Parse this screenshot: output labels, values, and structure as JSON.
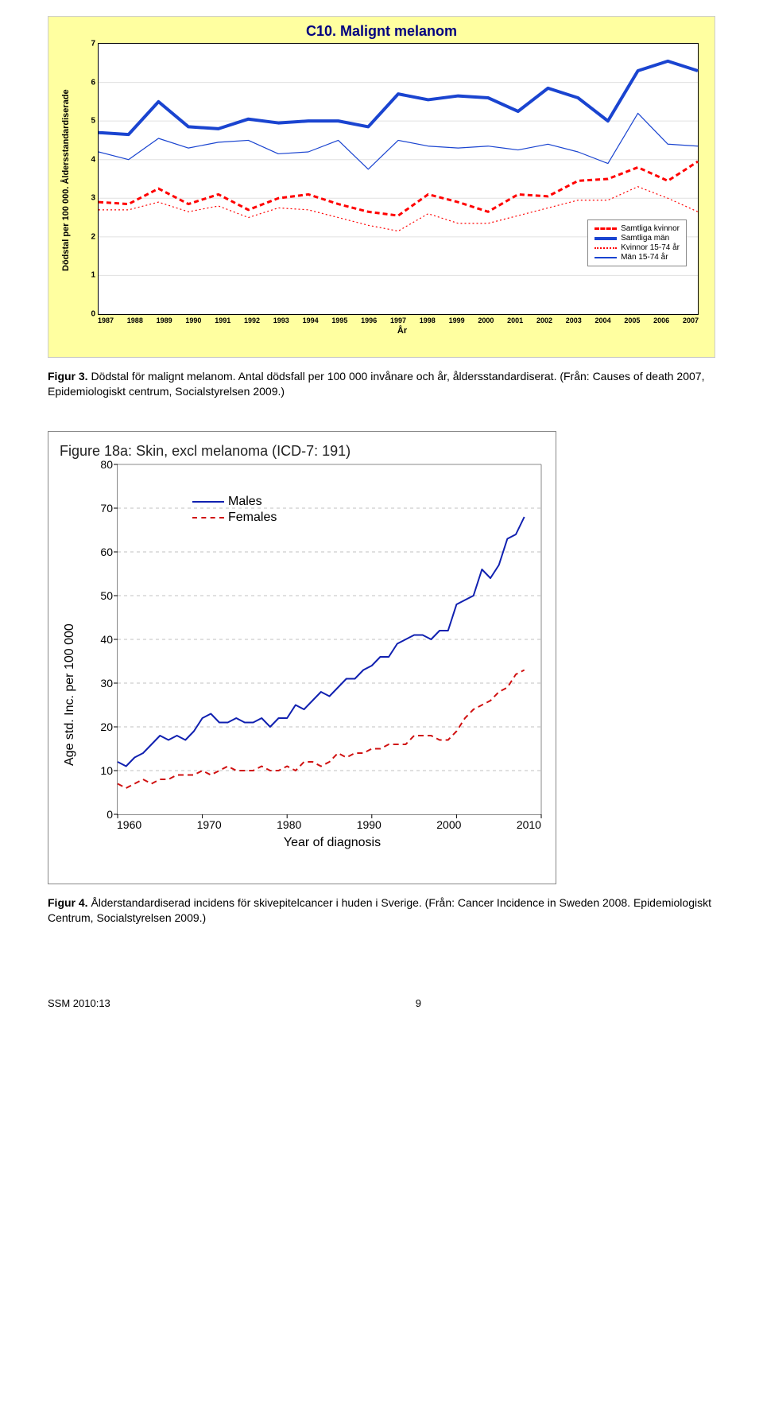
{
  "chart1": {
    "type": "line",
    "title": "C10. Malignt melanom",
    "title_color": "#000080",
    "title_fontsize": 18,
    "background_color": "#ffffa0",
    "plot_background": "#ffffff",
    "xlabel": "År",
    "ylabel": "Dödstal per 100 000. Åldersstandardiserade",
    "label_fontsize": 11,
    "ylim": [
      0,
      7
    ],
    "ytick_step": 1,
    "yticks": [
      0,
      1,
      2,
      3,
      4,
      5,
      6,
      7
    ],
    "xticks": [
      1987,
      1988,
      1989,
      1990,
      1991,
      1992,
      1993,
      1994,
      1995,
      1996,
      1997,
      1998,
      1999,
      2000,
      2001,
      2002,
      2003,
      2004,
      2005,
      2006,
      2007
    ],
    "grid_color": "#e0e0e0",
    "series": [
      {
        "name": "Samtliga kvinnor",
        "color": "#ff0000",
        "width": 3,
        "dash": "6,4",
        "values": [
          2.9,
          2.85,
          3.25,
          2.85,
          3.1,
          2.7,
          3.0,
          3.1,
          2.85,
          2.65,
          2.55,
          3.1,
          2.9,
          2.65,
          3.1,
          3.05,
          3.45,
          3.5,
          3.8,
          3.45,
          3.95
        ]
      },
      {
        "name": "Samtliga män",
        "color": "#1a44d0",
        "width": 4,
        "dash": "",
        "values": [
          4.7,
          4.65,
          5.5,
          4.85,
          4.8,
          5.05,
          4.95,
          5.0,
          5.0,
          4.85,
          5.7,
          5.55,
          5.65,
          5.6,
          5.25,
          5.85,
          5.6,
          5.0,
          6.3,
          6.55,
          6.3
        ]
      },
      {
        "name": "Kvinnor 15-74 år",
        "color": "#ff0000",
        "width": 1.2,
        "dash": "2,3",
        "values": [
          2.7,
          2.7,
          2.9,
          2.65,
          2.8,
          2.5,
          2.75,
          2.7,
          2.5,
          2.3,
          2.15,
          2.6,
          2.35,
          2.35,
          2.55,
          2.75,
          2.95,
          2.95,
          3.3,
          3.0,
          2.65
        ]
      },
      {
        "name": "Män 15-74 år",
        "color": "#1a44d0",
        "width": 1.2,
        "dash": "",
        "values": [
          4.2,
          4.0,
          4.55,
          4.3,
          4.45,
          4.5,
          4.15,
          4.2,
          4.5,
          3.75,
          4.5,
          4.35,
          4.3,
          4.35,
          4.25,
          4.4,
          4.2,
          3.9,
          5.2,
          4.4,
          4.35
        ]
      }
    ],
    "legend": {
      "position": "bottom-right",
      "border_color": "#888888",
      "background": "#ffffff",
      "fontsize": 10
    }
  },
  "caption1": {
    "bold": "Figur 3.",
    "text": " Dödstal för malignt melanom. Antal dödsfall per 100 000 invånare och år, åldersstandardiserat. (Från: Causes of death 2007, Epidemiologiskt centrum, Socialstyrelsen 2009.)"
  },
  "chart2": {
    "type": "line",
    "title_prefix": "Figure 18a:",
    "title_rest": "  Skin, excl melanoma (ICD-7: 191)",
    "title_fontsize": 18,
    "xlabel": "Year of diagnosis",
    "ylabel": "Age std. Inc. per 100 000",
    "label_fontsize": 16,
    "ylim": [
      0,
      80
    ],
    "ytick_step": 10,
    "yticks": [
      0,
      10,
      20,
      30,
      40,
      50,
      60,
      70,
      80
    ],
    "xlim": [
      1960,
      2010
    ],
    "xticks": [
      1960,
      1970,
      1980,
      1990,
      2000,
      2010
    ],
    "grid_color": "#c0c0c0",
    "border_color": "#888888",
    "series": [
      {
        "name": "Males",
        "color": "#1020b0",
        "width": 2,
        "dash": "",
        "x": [
          1960,
          1961,
          1962,
          1963,
          1964,
          1965,
          1966,
          1967,
          1968,
          1969,
          1970,
          1971,
          1972,
          1973,
          1974,
          1975,
          1976,
          1977,
          1978,
          1979,
          1980,
          1981,
          1982,
          1983,
          1984,
          1985,
          1986,
          1987,
          1988,
          1989,
          1990,
          1991,
          1992,
          1993,
          1994,
          1995,
          1996,
          1997,
          1998,
          1999,
          2000,
          2001,
          2002,
          2003,
          2004,
          2005,
          2006,
          2007,
          2008
        ],
        "y": [
          12,
          11,
          13,
          14,
          16,
          18,
          17,
          18,
          17,
          19,
          22,
          23,
          21,
          21,
          22,
          21,
          21,
          22,
          20,
          22,
          22,
          25,
          24,
          26,
          28,
          27,
          29,
          31,
          31,
          33,
          34,
          36,
          36,
          39,
          40,
          41,
          41,
          40,
          42,
          42,
          48,
          49,
          50,
          56,
          54,
          57,
          63,
          64,
          68
        ]
      },
      {
        "name": "Females",
        "color": "#d01010",
        "width": 2,
        "dash": "7,5",
        "x": [
          1960,
          1961,
          1962,
          1963,
          1964,
          1965,
          1966,
          1967,
          1968,
          1969,
          1970,
          1971,
          1972,
          1973,
          1974,
          1975,
          1976,
          1977,
          1978,
          1979,
          1980,
          1981,
          1982,
          1983,
          1984,
          1985,
          1986,
          1987,
          1988,
          1989,
          1990,
          1991,
          1992,
          1993,
          1994,
          1995,
          1996,
          1997,
          1998,
          1999,
          2000,
          2001,
          2002,
          2003,
          2004,
          2005,
          2006,
          2007,
          2008
        ],
        "y": [
          7,
          6,
          7,
          8,
          7,
          8,
          8,
          9,
          9,
          9,
          10,
          9,
          10,
          11,
          10,
          10,
          10,
          11,
          10,
          10,
          11,
          10,
          12,
          12,
          11,
          12,
          14,
          13,
          14,
          14,
          15,
          15,
          16,
          16,
          16,
          18,
          18,
          18,
          17,
          17,
          19,
          22,
          24,
          25,
          26,
          28,
          29,
          32,
          33
        ]
      }
    ],
    "legend": {
      "position": "top-left-inside",
      "fontsize": 16
    }
  },
  "caption2": {
    "bold": "Figur 4.",
    "text": " Ålderstandardiserad incidens för skivepitelcancer i huden i Sverige. (Från: Cancer Incidence in Sweden 2008. Epidemiologiskt Centrum, Socialstyrelsen 2009.)"
  },
  "footer": {
    "left": "SSM 2010:13",
    "page": "9"
  }
}
